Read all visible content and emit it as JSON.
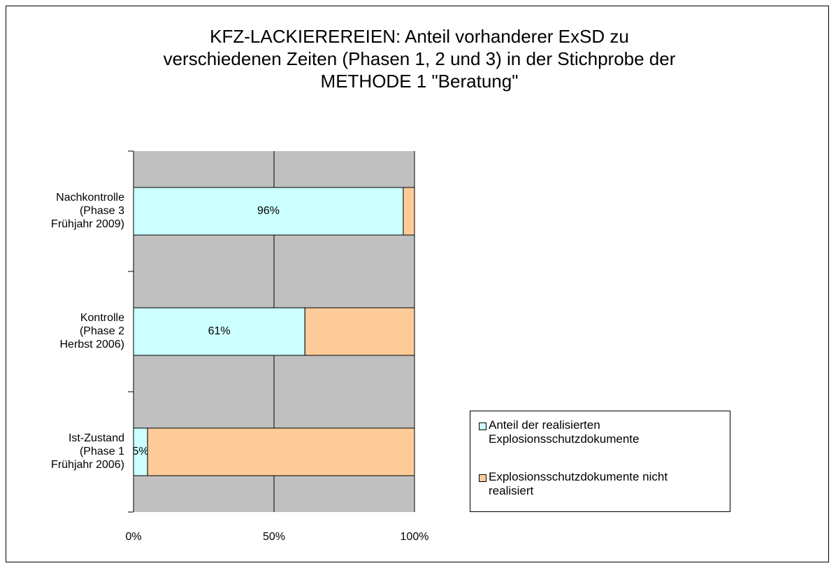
{
  "chart_data": {
    "type": "bar",
    "orientation": "horizontal",
    "stacked": true,
    "title": "KFZ-LACKIEREREIEN: Anteil vorhanderer ExSD zu\nverschiedenen Zeiten (Phasen 1, 2 und 3) in der Stichprobe der\nMETHODE 1 \"Beratung\"",
    "categories": [
      "Ist-Zustand\n(Phase 1\nFrühjahr 2006)",
      "Kontrolle\n(Phase 2\nHerbst 2006)",
      "Nachkontrolle\n(Phase 3\nFrühjahr 2009)"
    ],
    "series": [
      {
        "name": "Anteil der realisierten\nExplosionsschutzdokumente",
        "color": "#ccffff",
        "values": [
          5,
          61,
          96
        ],
        "value_labels": [
          "5%",
          "61%",
          "96%"
        ]
      },
      {
        "name": "Explosionsschutzdokumente nicht\nrealisiert",
        "color": "#ffcc99",
        "values": [
          95,
          39,
          4
        ]
      }
    ],
    "xlim": [
      0,
      100
    ],
    "xticks": [
      {
        "value": 0,
        "label": "0%"
      },
      {
        "value": 50,
        "label": "50%"
      },
      {
        "value": 100,
        "label": "100%"
      }
    ],
    "grid": true,
    "legend": "right"
  }
}
